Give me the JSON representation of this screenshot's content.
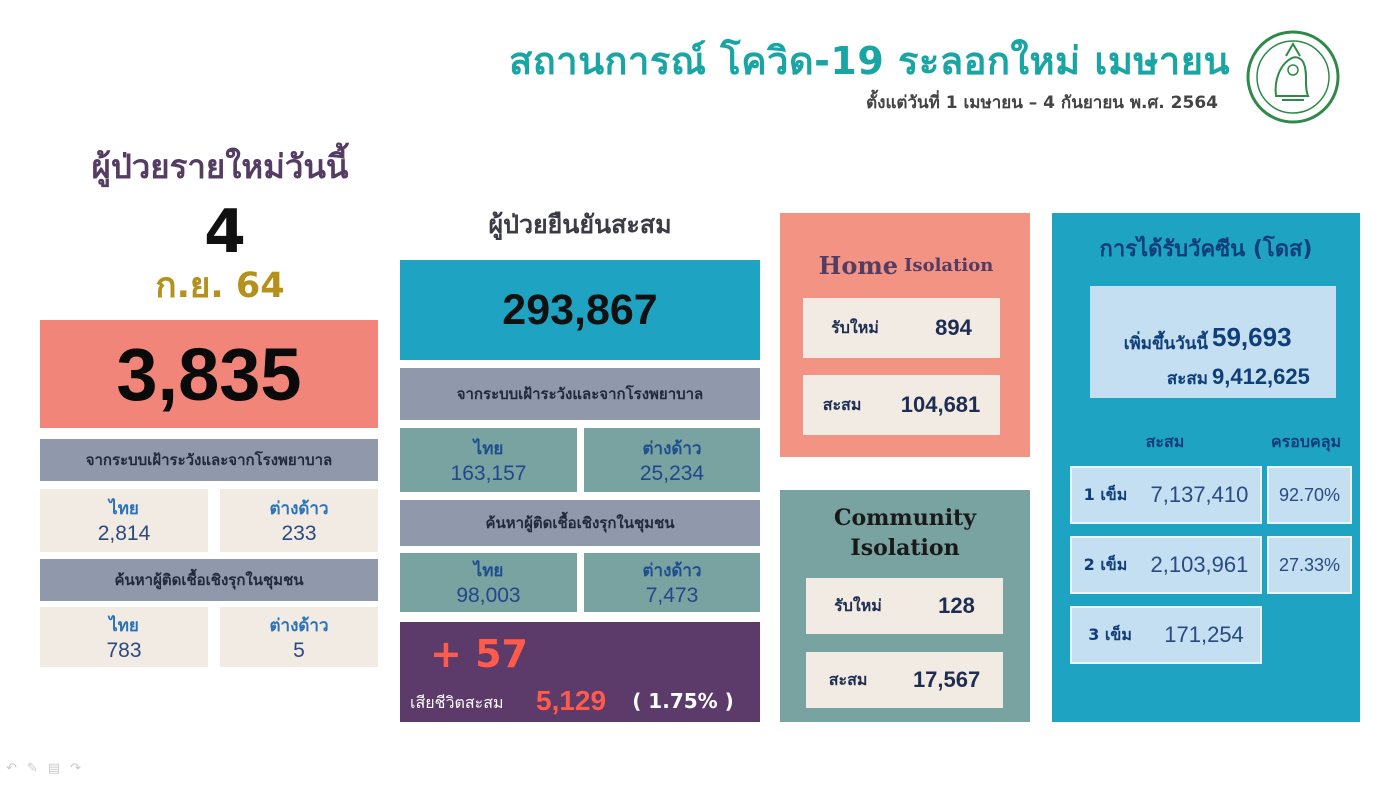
{
  "header": {
    "title": "สถานการณ์ โควิด-19 ระลอกใหม่ เมษายน",
    "subtitle": "ตั้งแต่วันที่ 1 เมษายน – 4 กันยายน พ.ศ. 2564"
  },
  "today": {
    "heading": "ผู้ป่วยรายใหม่วันนี้",
    "day": "4",
    "month": "ก.ย. 64",
    "total": "3,835",
    "surveillance_label": "จากระบบเฝ้าระวังและจากโรงพยาบาล",
    "surveillance": {
      "thai_label": "ไทย",
      "thai_value": "2,814",
      "foreign_label": "ต่างด้าว",
      "foreign_value": "233"
    },
    "community_label": "ค้นหาผู้ติดเชื้อเชิงรุกในชุมชน",
    "community": {
      "thai_label": "ไทย",
      "thai_value": "783",
      "foreign_label": "ต่างด้าว",
      "foreign_value": "5"
    }
  },
  "cumulative": {
    "heading": "ผู้ป่วยยืนยันสะสม",
    "total": "293,867",
    "surveillance_label": "จากระบบเฝ้าระวังและจากโรงพยาบาล",
    "surveillance": {
      "thai_label": "ไทย",
      "thai_value": "163,157",
      "foreign_label": "ต่างด้าว",
      "foreign_value": "25,234"
    },
    "community_label": "ค้นหาผู้ติดเชื้อเชิงรุกในชุมชน",
    "community": {
      "thai_label": "ไทย",
      "thai_value": "98,003",
      "foreign_label": "ต่างด้าว",
      "foreign_value": "7,473"
    },
    "deaths": {
      "new": "+ 57",
      "label": "เสียชีวิตสะสม",
      "value": "5,129",
      "percent": "( 1.75% )"
    }
  },
  "home_isolation": {
    "title_big": "Home",
    "title_small": "Isolation",
    "new_label": "รับใหม่",
    "new_value": "894",
    "total_label": "สะสม",
    "total_value": "104,681"
  },
  "community_isolation": {
    "title_line1": "Community",
    "title_line2": "Isolation",
    "new_label": "รับใหม่",
    "new_value": "128",
    "total_label": "สะสม",
    "total_value": "17,567"
  },
  "vaccination": {
    "title": "การได้รับวัคซีน (โดส)",
    "today_label": "เพิ่มขึ้นวันนี้",
    "today_value": "59,693",
    "total_label": "สะสม",
    "total_value": "9,412,625",
    "col_cumulative": "สะสม",
    "col_coverage": "ครอบคลุม",
    "doses": [
      {
        "label": "1 เข็ม",
        "value": "7,137,410",
        "coverage": "92.70%"
      },
      {
        "label": "2 เข็ม",
        "value": "2,103,961",
        "coverage": "27.33%"
      },
      {
        "label": "3 เข็ม",
        "value": "171,254"
      }
    ]
  },
  "colors": {
    "title_teal": "#1aa5a5",
    "salmon": "#f2857a",
    "blue": "#1fa3c3",
    "teal_panel": "#78a3a1",
    "purple": "#5c3b6a",
    "death_red": "#ff5a4a"
  },
  "icons": [
    "bangkok-emblem-icon",
    "slide-back-icon",
    "pen-icon",
    "menu-icon",
    "slide-forward-icon"
  ]
}
